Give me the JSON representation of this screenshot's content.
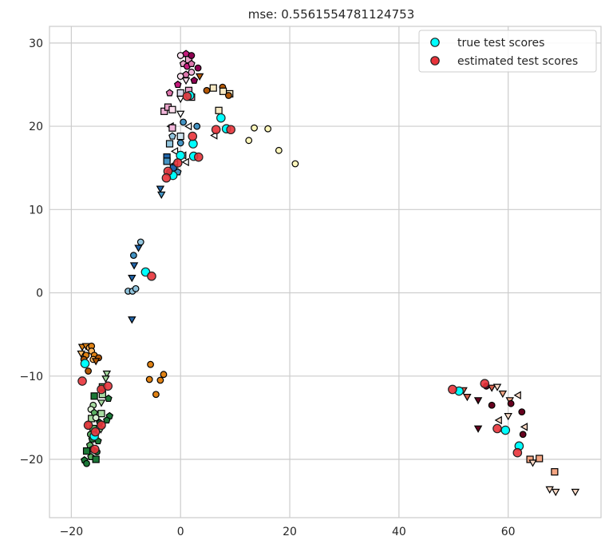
{
  "chart_data": {
    "type": "scatter",
    "title": "mse: 0.5561554781124753",
    "xlabel": "",
    "ylabel": "",
    "xlim": [
      -24,
      77
    ],
    "ylim": [
      -27,
      32
    ],
    "x_ticks": [
      -20,
      0,
      20,
      40,
      60
    ],
    "x_tick_labels": [
      "−20",
      "0",
      "20",
      "40",
      "60"
    ],
    "y_ticks": [
      -20,
      -10,
      0,
      10,
      20,
      30
    ],
    "y_tick_labels": [
      "−20",
      "−10",
      "0",
      "10",
      "20",
      "30"
    ],
    "grid": true,
    "legend_position": "top-right",
    "legend": [
      {
        "label": "true test scores",
        "color": "#00ffff"
      },
      {
        "label": "estimated test scores",
        "color": "#e8333a"
      }
    ],
    "markers": [
      {
        "x": 0,
        "y": 28.5,
        "shape": "circle",
        "color": "#fde0ef"
      },
      {
        "x": 1,
        "y": 28.7,
        "shape": "pentagon",
        "color": "#c51b7d"
      },
      {
        "x": 1.5,
        "y": 28,
        "shape": "square",
        "color": "#e9a3c9"
      },
      {
        "x": 2,
        "y": 28.5,
        "shape": "circle",
        "color": "#8e0152"
      },
      {
        "x": 0.5,
        "y": 27.5,
        "shape": "pentagon",
        "color": "#e9a3c9"
      },
      {
        "x": 1.2,
        "y": 27.2,
        "shape": "circle",
        "color": "#c51b7d"
      },
      {
        "x": 2,
        "y": 27.5,
        "shape": "pentagon",
        "color": "#de77ae"
      },
      {
        "x": 3.2,
        "y": 27,
        "shape": "circle",
        "color": "#8e0152"
      },
      {
        "x": 0,
        "y": 26,
        "shape": "circle",
        "color": "#fde0ef"
      },
      {
        "x": 1,
        "y": 26.2,
        "shape": "pentagon",
        "color": "#de77ae"
      },
      {
        "x": 2,
        "y": 26.5,
        "shape": "circle",
        "color": "#f1b6da"
      },
      {
        "x": 3.5,
        "y": 26,
        "shape": "triangle-down",
        "color": "#b35806"
      },
      {
        "x": -0.5,
        "y": 25,
        "shape": "pentagon",
        "color": "#c51b7d"
      },
      {
        "x": 1,
        "y": 25.5,
        "shape": "triangle-down",
        "color": "#fde0ef"
      },
      {
        "x": 2.5,
        "y": 25.5,
        "shape": "pentagon",
        "color": "#8e0152"
      },
      {
        "x": -2,
        "y": 24,
        "shape": "pentagon",
        "color": "#de77ae"
      },
      {
        "x": 0,
        "y": 24,
        "shape": "square",
        "color": "#d8daeb"
      },
      {
        "x": 1.5,
        "y": 24.3,
        "shape": "square",
        "color": "#e9a3c9"
      },
      {
        "x": 4.8,
        "y": 24.3,
        "shape": "circle",
        "color": "#b35806"
      },
      {
        "x": 6,
        "y": 24.6,
        "shape": "square",
        "color": "#f6e8c3"
      },
      {
        "x": 7.7,
        "y": 24.7,
        "shape": "circle",
        "color": "#b35806"
      },
      {
        "x": 7.8,
        "y": 24.2,
        "shape": "square",
        "color": "#f6e8c3"
      },
      {
        "x": 9,
        "y": 23.9,
        "shape": "square",
        "color": "#f6e8c3"
      },
      {
        "x": 0,
        "y": 23.3,
        "shape": "triangle-down",
        "color": "#ffffff"
      },
      {
        "x": 2,
        "y": 23.5,
        "shape": "square",
        "color": "#e9a3c9"
      },
      {
        "x": 8.8,
        "y": 23.7,
        "shape": "circle",
        "color": "#b35806"
      },
      {
        "x": -3,
        "y": 21.8,
        "shape": "square",
        "color": "#f1b6da"
      },
      {
        "x": -2.3,
        "y": 22.3,
        "shape": "square",
        "color": "#e9a3c9"
      },
      {
        "x": -1.5,
        "y": 22,
        "shape": "square",
        "color": "#fde0ef"
      },
      {
        "x": 7,
        "y": 21.9,
        "shape": "square",
        "color": "#f6e8c3"
      },
      {
        "x": 0,
        "y": 21.5,
        "shape": "triangle-down",
        "color": "#ffffff"
      },
      {
        "x": 0.5,
        "y": 20.5,
        "shape": "circle",
        "color": "#4393c3"
      },
      {
        "x": -1.8,
        "y": 20,
        "shape": "triangle-left",
        "color": "#ffffff"
      },
      {
        "x": -1.5,
        "y": 19.8,
        "shape": "square",
        "color": "#f1b6da"
      },
      {
        "x": 1.5,
        "y": 20,
        "shape": "triangle-left",
        "color": "#ffffff"
      },
      {
        "x": 3,
        "y": 20,
        "shape": "circle",
        "color": "#4393c3"
      },
      {
        "x": 13.5,
        "y": 19.8,
        "shape": "circle",
        "color": "#fff7bc"
      },
      {
        "x": 16,
        "y": 19.7,
        "shape": "circle",
        "color": "#fff7bc"
      },
      {
        "x": -1.5,
        "y": 18.8,
        "shape": "pentagon",
        "color": "#92c5de"
      },
      {
        "x": 0,
        "y": 18.8,
        "shape": "square",
        "color": "#d1e5f0"
      },
      {
        "x": 6.2,
        "y": 18.9,
        "shape": "triangle-left",
        "color": "#ffffff"
      },
      {
        "x": 12.5,
        "y": 18.3,
        "shape": "circle",
        "color": "#fff7bc"
      },
      {
        "x": -2,
        "y": 17.9,
        "shape": "square",
        "color": "#92c5de"
      },
      {
        "x": 0,
        "y": 18,
        "shape": "circle",
        "color": "#4393c3"
      },
      {
        "x": -1,
        "y": 17,
        "shape": "triangle-left",
        "color": "#ffffff"
      },
      {
        "x": 18,
        "y": 17.1,
        "shape": "circle",
        "color": "#fff7bc"
      },
      {
        "x": -2.5,
        "y": 16.3,
        "shape": "square",
        "color": "#2166ac"
      },
      {
        "x": -2.5,
        "y": 15.8,
        "shape": "square",
        "color": "#4393c3"
      },
      {
        "x": 0.5,
        "y": 16.5,
        "shape": "triangle-left",
        "color": "#ffffff"
      },
      {
        "x": -1,
        "y": 15.5,
        "shape": "triangle-left",
        "color": "#ffffff"
      },
      {
        "x": 1,
        "y": 15.7,
        "shape": "triangle-left",
        "color": "#ffffff"
      },
      {
        "x": 21,
        "y": 15.5,
        "shape": "circle",
        "color": "#fff7bc"
      },
      {
        "x": -1.3,
        "y": 15,
        "shape": "square",
        "color": "#2166ac"
      },
      {
        "x": -0.5,
        "y": 14.5,
        "shape": "pentagon",
        "color": "#4393c3"
      },
      {
        "x": -2,
        "y": 14.5,
        "shape": "circle",
        "color": "#4393c3"
      },
      {
        "x": -3.7,
        "y": 12.5,
        "shape": "triangle-down",
        "color": "#2166ac"
      },
      {
        "x": -3.5,
        "y": 11.8,
        "shape": "triangle-down",
        "color": "#4393c3"
      },
      {
        "x": -7.3,
        "y": 6.1,
        "shape": "circle",
        "color": "#92c5de"
      },
      {
        "x": -7.7,
        "y": 5.4,
        "shape": "triangle-down",
        "color": "#2166ac"
      },
      {
        "x": -8.6,
        "y": 4.5,
        "shape": "circle",
        "color": "#4393c3"
      },
      {
        "x": -8.5,
        "y": 3.3,
        "shape": "triangle-down",
        "color": "#2166ac"
      },
      {
        "x": -8.9,
        "y": 1.8,
        "shape": "triangle-down",
        "color": "#2166ac"
      },
      {
        "x": -9.6,
        "y": 0.2,
        "shape": "circle",
        "color": "#92c5de"
      },
      {
        "x": -8.8,
        "y": 0.2,
        "shape": "circle",
        "color": "#92c5de"
      },
      {
        "x": -8.2,
        "y": 0.5,
        "shape": "circle",
        "color": "#92c5de"
      },
      {
        "x": -8.9,
        "y": -3.2,
        "shape": "triangle-down",
        "color": "#2166ac"
      },
      {
        "x": -18,
        "y": -6.5,
        "shape": "triangle-down",
        "color": "#e08214"
      },
      {
        "x": -17.3,
        "y": -6.4,
        "shape": "triangle-down",
        "color": "#e08214"
      },
      {
        "x": -16.7,
        "y": -6.6,
        "shape": "circle",
        "color": "#fdb863"
      },
      {
        "x": -16.3,
        "y": -6.4,
        "shape": "circle",
        "color": "#e08214"
      },
      {
        "x": -18.2,
        "y": -7.3,
        "shape": "triangle-down",
        "color": "#fdb863"
      },
      {
        "x": -17.3,
        "y": -7.5,
        "shape": "circle",
        "color": "#e08214"
      },
      {
        "x": -16.3,
        "y": -7,
        "shape": "circle",
        "color": "#fdb863"
      },
      {
        "x": -15.8,
        "y": -7.5,
        "shape": "circle",
        "color": "#e08214"
      },
      {
        "x": -17.7,
        "y": -8,
        "shape": "circle",
        "color": "#b35806"
      },
      {
        "x": -16,
        "y": -8,
        "shape": "circle",
        "color": "#fdb863"
      },
      {
        "x": -15,
        "y": -7.8,
        "shape": "circle",
        "color": "#b35806"
      },
      {
        "x": -15.5,
        "y": -8.2,
        "shape": "triangle-down",
        "color": "#b35806"
      },
      {
        "x": -16.9,
        "y": -9.4,
        "shape": "circle",
        "color": "#b35806"
      },
      {
        "x": -5.5,
        "y": -8.6,
        "shape": "circle",
        "color": "#e08214"
      },
      {
        "x": -3.1,
        "y": -9.8,
        "shape": "circle",
        "color": "#e08214"
      },
      {
        "x": -5.7,
        "y": -10.4,
        "shape": "circle",
        "color": "#e08214"
      },
      {
        "x": -3.7,
        "y": -10.5,
        "shape": "circle",
        "color": "#e08214"
      },
      {
        "x": -4.5,
        "y": -12.2,
        "shape": "circle",
        "color": "#e08214"
      },
      {
        "x": -13.5,
        "y": -9.7,
        "shape": "triangle-down",
        "color": "#a6dba0"
      },
      {
        "x": -13.7,
        "y": -10.3,
        "shape": "triangle-down",
        "color": "#a6dba0"
      },
      {
        "x": -14.3,
        "y": -11.3,
        "shape": "square",
        "color": "#5aae61"
      },
      {
        "x": -14.3,
        "y": -12.2,
        "shape": "square",
        "color": "#a6dba0"
      },
      {
        "x": -15.8,
        "y": -12.4,
        "shape": "square",
        "color": "#1b7837"
      },
      {
        "x": -13.2,
        "y": -12.7,
        "shape": "pentagon",
        "color": "#1b7837"
      },
      {
        "x": -16,
        "y": -13.5,
        "shape": "circle",
        "color": "#a6dba0"
      },
      {
        "x": -14.5,
        "y": -13.2,
        "shape": "triangle-down",
        "color": "#a6dba0"
      },
      {
        "x": -16.4,
        "y": -14,
        "shape": "circle",
        "color": "#d9f0d3"
      },
      {
        "x": -15.8,
        "y": -14.4,
        "shape": "pentagon",
        "color": "#5aae61"
      },
      {
        "x": -14.5,
        "y": -14.5,
        "shape": "square",
        "color": "#a6dba0"
      },
      {
        "x": -13,
        "y": -14.8,
        "shape": "pentagon",
        "color": "#1b7837"
      },
      {
        "x": -16.3,
        "y": -15.1,
        "shape": "square",
        "color": "#a6dba0"
      },
      {
        "x": -15.5,
        "y": -15,
        "shape": "circle",
        "color": "#d9f0d3"
      },
      {
        "x": -14.8,
        "y": -15.6,
        "shape": "pentagon",
        "color": "#1b7837"
      },
      {
        "x": -13.5,
        "y": -15.3,
        "shape": "pentagon",
        "color": "#1b7837"
      },
      {
        "x": -16.8,
        "y": -15.9,
        "shape": "circle",
        "color": "#a6dba0"
      },
      {
        "x": -16,
        "y": -16.3,
        "shape": "square",
        "color": "#5aae61"
      },
      {
        "x": -14.6,
        "y": -16.4,
        "shape": "triangle-down",
        "color": "#a6dba0"
      },
      {
        "x": -16.5,
        "y": -17,
        "shape": "circle",
        "color": "#5aae61"
      },
      {
        "x": -16.2,
        "y": -17.6,
        "shape": "pentagon",
        "color": "#1b7837"
      },
      {
        "x": -15.1,
        "y": -17.8,
        "shape": "pentagon",
        "color": "#1b7837"
      },
      {
        "x": -16.6,
        "y": -18.3,
        "shape": "pentagon",
        "color": "#5aae61"
      },
      {
        "x": -16.2,
        "y": -18.8,
        "shape": "pentagon",
        "color": "#1b7837"
      },
      {
        "x": -17.2,
        "y": -19,
        "shape": "square",
        "color": "#1b7837"
      },
      {
        "x": -15.3,
        "y": -19.1,
        "shape": "circle",
        "color": "#1b7837"
      },
      {
        "x": -16.4,
        "y": -19.7,
        "shape": "pentagon",
        "color": "#5aae61"
      },
      {
        "x": -17.6,
        "y": -20.1,
        "shape": "pentagon",
        "color": "#1b7837"
      },
      {
        "x": -15.5,
        "y": -20,
        "shape": "square",
        "color": "#1b7837"
      },
      {
        "x": -17.2,
        "y": -20.5,
        "shape": "circle",
        "color": "#1b7837"
      },
      {
        "x": 51.8,
        "y": -11.7,
        "shape": "triangle-down",
        "color": "#d6604d"
      },
      {
        "x": 52.5,
        "y": -12.5,
        "shape": "triangle-down",
        "color": "#d6604d"
      },
      {
        "x": 54.5,
        "y": -12.9,
        "shape": "triangle-down",
        "color": "#67001f"
      },
      {
        "x": 56,
        "y": -11.2,
        "shape": "circle",
        "color": "#67001f"
      },
      {
        "x": 57,
        "y": -11.4,
        "shape": "triangle-down",
        "color": "#d6604d"
      },
      {
        "x": 58,
        "y": -11.3,
        "shape": "triangle-down",
        "color": "#fddbc7"
      },
      {
        "x": 59,
        "y": -12.1,
        "shape": "triangle-down",
        "color": "#f4a582"
      },
      {
        "x": 60.3,
        "y": -12.9,
        "shape": "triangle-down",
        "color": "#f4a582"
      },
      {
        "x": 61.8,
        "y": -12.3,
        "shape": "triangle-left",
        "color": "#fddbc7"
      },
      {
        "x": 60.5,
        "y": -13.3,
        "shape": "circle",
        "color": "#67001f"
      },
      {
        "x": 57,
        "y": -13.5,
        "shape": "circle",
        "color": "#67001f"
      },
      {
        "x": 62.5,
        "y": -14.3,
        "shape": "circle",
        "color": "#67001f"
      },
      {
        "x": 60,
        "y": -14.8,
        "shape": "triangle-down",
        "color": "#fddbc7"
      },
      {
        "x": 58.3,
        "y": -15.3,
        "shape": "triangle-left",
        "color": "#fddbc7"
      },
      {
        "x": 54.5,
        "y": -16.3,
        "shape": "triangle-down",
        "color": "#67001f"
      },
      {
        "x": 59,
        "y": -16.5,
        "shape": "triangle-left",
        "color": "#fddbc7"
      },
      {
        "x": 63,
        "y": -16.1,
        "shape": "triangle-left",
        "color": "#fddbc7"
      },
      {
        "x": 62.7,
        "y": -17,
        "shape": "circle",
        "color": "#67001f"
      },
      {
        "x": 64,
        "y": -20,
        "shape": "square",
        "color": "#f4a582"
      },
      {
        "x": 65.7,
        "y": -19.9,
        "shape": "square",
        "color": "#f4a582"
      },
      {
        "x": 64.5,
        "y": -20.4,
        "shape": "triangle-down",
        "color": "#fddbc7"
      },
      {
        "x": 68.5,
        "y": -21.5,
        "shape": "square",
        "color": "#f4a582"
      },
      {
        "x": 67.6,
        "y": -23.6,
        "shape": "triangle-down",
        "color": "#fddbc7"
      },
      {
        "x": 68.7,
        "y": -23.9,
        "shape": "triangle-down",
        "color": "#fddbc7"
      },
      {
        "x": 72.3,
        "y": -23.9,
        "shape": "triangle-down",
        "color": "#fddbc7"
      }
    ],
    "series": [
      {
        "name": "true test scores",
        "color": "#00ffff",
        "points": [
          {
            "x": 1.7,
            "y": 23.7
          },
          {
            "x": 7.4,
            "y": 21
          },
          {
            "x": 8.4,
            "y": 19.7
          },
          {
            "x": 2.3,
            "y": 17.9
          },
          {
            "x": 2.4,
            "y": 16.4
          },
          {
            "x": 0,
            "y": 16.5
          },
          {
            "x": -1.4,
            "y": 14.1
          },
          {
            "x": -6.4,
            "y": 2.5
          },
          {
            "x": -17.5,
            "y": -8.5
          },
          {
            "x": -15.8,
            "y": -17.2
          },
          {
            "x": 51,
            "y": -11.8
          },
          {
            "x": 59.5,
            "y": -16.5
          },
          {
            "x": 62,
            "y": -18.4
          }
        ]
      },
      {
        "name": "estimated test scores",
        "color": "#e8333a",
        "points": [
          {
            "x": 1.2,
            "y": 23.6
          },
          {
            "x": 2.2,
            "y": 18.8
          },
          {
            "x": 6.5,
            "y": 19.6
          },
          {
            "x": 9.2,
            "y": 19.6
          },
          {
            "x": 3.3,
            "y": 16.3
          },
          {
            "x": -0.5,
            "y": 15.6
          },
          {
            "x": -2.3,
            "y": 14.6
          },
          {
            "x": -2.6,
            "y": 13.8
          },
          {
            "x": -5.3,
            "y": 2
          },
          {
            "x": -18,
            "y": -10.6
          },
          {
            "x": -14.5,
            "y": -11.6
          },
          {
            "x": -13.3,
            "y": -11.2
          },
          {
            "x": -16.9,
            "y": -15.9
          },
          {
            "x": -14.5,
            "y": -15.9
          },
          {
            "x": -15.6,
            "y": -16.7
          },
          {
            "x": -15.7,
            "y": -18.8
          },
          {
            "x": 49.8,
            "y": -11.6
          },
          {
            "x": 55.7,
            "y": -10.9
          },
          {
            "x": 58,
            "y": -16.3
          },
          {
            "x": 61.7,
            "y": -19.2
          }
        ]
      }
    ]
  }
}
